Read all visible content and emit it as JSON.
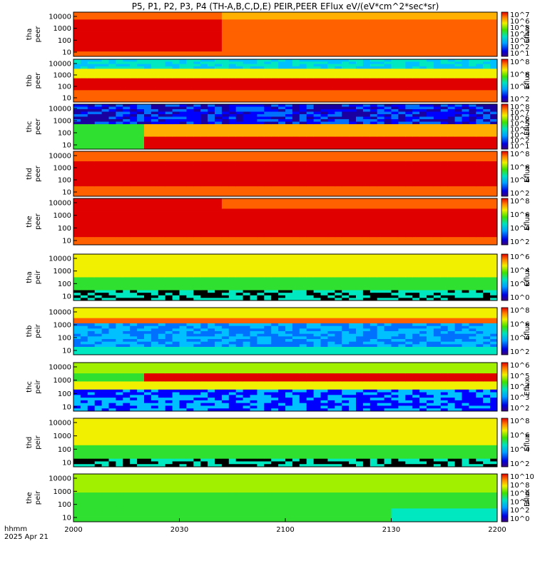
{
  "chart_data": {
    "type": "heatmap",
    "title": "P5, P1, P2, P3, P4 (TH-A,B,C,D,E) PEIR,PEER EFlux eV/(eV*cm^2*sec*sr)",
    "x_label_line1": "hhmm",
    "x_label_line2": "2025 Apr 21",
    "x_ticks": [
      "2000",
      "2030",
      "2100",
      "2130",
      "2200"
    ],
    "colorbar_label": "Eflux",
    "panels": [
      {
        "probe": "tha",
        "species": "peer",
        "y_ticks": [
          "10000",
          "1000",
          "100",
          "10"
        ],
        "cb_ticks": [
          "10^7",
          "10^6",
          "10^5",
          "10^4",
          "10^3",
          "10^2",
          "10^1"
        ],
        "style": "electron_a"
      },
      {
        "probe": "thb",
        "species": "peer",
        "y_ticks": [
          "10000",
          "1000",
          "100",
          "10"
        ],
        "cb_ticks": [
          "10^8",
          "10^6",
          "10^4",
          "10^2"
        ],
        "style": "electron_b"
      },
      {
        "probe": "thc",
        "species": "peer",
        "y_ticks": [
          "10000",
          "1000",
          "100",
          "10"
        ],
        "cb_ticks": [
          "10^8",
          "10^7",
          "10^6",
          "10^5",
          "10^4",
          "10^3",
          "10^2",
          "10^1"
        ],
        "style": "electron_c"
      },
      {
        "probe": "thd",
        "species": "peer",
        "y_ticks": [
          "10000",
          "1000",
          "100",
          "10"
        ],
        "cb_ticks": [
          "10^8",
          "10^6",
          "10^4",
          "10^2"
        ],
        "style": "electron_d"
      },
      {
        "probe": "the",
        "species": "peer",
        "y_ticks": [
          "10000",
          "1000",
          "100",
          "10"
        ],
        "cb_ticks": [
          "10^8",
          "10^6",
          "10^4",
          "10^2"
        ],
        "style": "electron_e"
      },
      {
        "probe": "tha",
        "species": "peir",
        "y_ticks": [
          "10000",
          "1000",
          "100",
          "10"
        ],
        "cb_ticks": [
          "10^6",
          "10^4",
          "10^2",
          "10^0"
        ],
        "style": "ion_a"
      },
      {
        "probe": "thb",
        "species": "peir",
        "y_ticks": [
          "10000",
          "1000",
          "100",
          "10"
        ],
        "cb_ticks": [
          "10^8",
          "10^6",
          "10^4",
          "10^2"
        ],
        "style": "ion_b"
      },
      {
        "probe": "thc",
        "species": "peir",
        "y_ticks": [
          "10000",
          "1000",
          "100",
          "10"
        ],
        "cb_ticks": [
          "10^6",
          "10^5",
          "10^4",
          "10^3",
          "10^2"
        ],
        "style": "ion_c"
      },
      {
        "probe": "thd",
        "species": "peir",
        "y_ticks": [
          "10000",
          "1000",
          "100",
          "10"
        ],
        "cb_ticks": [
          "10^8",
          "10^6",
          "10^4",
          "10^2"
        ],
        "style": "ion_d"
      },
      {
        "probe": "the",
        "species": "peir",
        "y_ticks": [
          "10000",
          "1000",
          "100",
          "10"
        ],
        "cb_ticks": [
          "10^10",
          "10^8",
          "10^6",
          "10^4",
          "10^2",
          "10^0"
        ],
        "style": "ion_e"
      }
    ]
  }
}
